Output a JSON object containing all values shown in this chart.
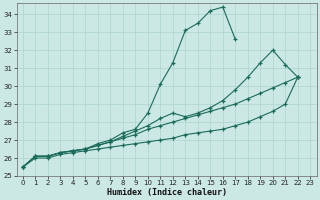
{
  "xlabel": "Humidex (Indice chaleur)",
  "bg_color": "#cce8e4",
  "grid_color": "#aad4cc",
  "line_color": "#1a6b5a",
  "xlim": [
    -0.5,
    23.5
  ],
  "ylim": [
    25,
    34.6
  ],
  "xticks": [
    0,
    1,
    2,
    3,
    4,
    5,
    6,
    7,
    8,
    9,
    10,
    11,
    12,
    13,
    14,
    15,
    16,
    17,
    18,
    19,
    20,
    21,
    22,
    23
  ],
  "yticks": [
    25,
    26,
    27,
    28,
    29,
    30,
    31,
    32,
    33,
    34
  ],
  "series": [
    {
      "x": [
        0,
        1,
        2,
        3,
        4,
        5,
        6,
        7,
        8,
        9,
        10,
        11,
        12,
        13,
        14,
        15,
        16,
        17,
        18,
        19,
        20,
        21,
        22
      ],
      "y": [
        25.5,
        26.1,
        26.1,
        26.3,
        26.4,
        26.5,
        26.8,
        27.0,
        27.4,
        27.6,
        28.5,
        30.1,
        31.3,
        33.1,
        33.5,
        34.2,
        34.4,
        32.6,
        null,
        null,
        null,
        null,
        null
      ]
    },
    {
      "x": [
        0,
        1,
        2,
        3,
        4,
        5,
        6,
        7,
        8,
        9,
        10,
        11,
        12,
        13,
        14,
        15,
        16,
        17,
        18,
        19,
        20,
        21,
        22
      ],
      "y": [
        25.5,
        26.1,
        26.1,
        26.3,
        26.4,
        26.5,
        26.7,
        26.9,
        27.2,
        27.5,
        27.8,
        28.2,
        28.5,
        28.3,
        28.5,
        28.8,
        29.2,
        29.8,
        30.5,
        31.3,
        32.0,
        31.2,
        30.5
      ]
    },
    {
      "x": [
        0,
        1,
        2,
        3,
        4,
        5,
        6,
        7,
        8,
        9,
        10,
        11,
        12,
        13,
        14,
        15,
        16,
        17,
        18,
        19,
        20,
        21,
        22
      ],
      "y": [
        25.5,
        26.1,
        26.1,
        26.3,
        26.4,
        26.5,
        26.7,
        26.9,
        27.1,
        27.3,
        27.6,
        27.8,
        28.0,
        28.2,
        28.4,
        28.6,
        28.8,
        29.0,
        29.3,
        29.6,
        29.9,
        30.2,
        30.5
      ]
    },
    {
      "x": [
        0,
        1,
        2,
        3,
        4,
        5,
        6,
        7,
        8,
        9,
        10,
        11,
        12,
        13,
        14,
        15,
        16,
        17,
        18,
        19,
        20,
        21,
        22
      ],
      "y": [
        25.5,
        26.0,
        26.0,
        26.2,
        26.3,
        26.4,
        26.5,
        26.6,
        26.7,
        26.8,
        26.9,
        27.0,
        27.1,
        27.3,
        27.4,
        27.5,
        27.6,
        27.8,
        28.0,
        28.3,
        28.6,
        29.0,
        30.5
      ]
    }
  ]
}
